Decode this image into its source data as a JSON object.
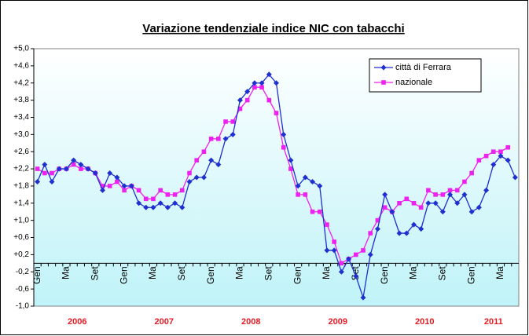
{
  "chart_data": {
    "type": "line",
    "title": "Variazione tendenziale indice NIC con tabacchi",
    "categories": [
      "Gen",
      null,
      null,
      null,
      "Ma",
      null,
      null,
      null,
      "Set",
      null,
      null,
      null,
      "Gen",
      null,
      null,
      null,
      "Ma",
      null,
      null,
      null,
      "Set",
      null,
      null,
      null,
      "Gen",
      null,
      null,
      null,
      "Ma",
      null,
      null,
      null,
      "Set",
      null,
      null,
      null,
      "Gen",
      null,
      null,
      null,
      "Ma",
      null,
      null,
      null,
      "Set",
      null,
      null,
      null,
      "Gen",
      null,
      null,
      null,
      "Ma",
      null,
      null,
      null,
      "Set",
      null,
      null,
      null,
      "Gen",
      null,
      null,
      null,
      "Ma",
      null,
      null
    ],
    "years": [
      "2006",
      "2007",
      "2008",
      "2009",
      "2010",
      "2011"
    ],
    "series": [
      {
        "name": "città di Ferrara",
        "color": "#1f2fd0",
        "marker": "diamond",
        "values": [
          1.9,
          2.3,
          1.9,
          2.2,
          2.2,
          2.4,
          2.3,
          2.2,
          2.1,
          1.7,
          2.1,
          2.0,
          1.8,
          1.8,
          1.4,
          1.3,
          1.3,
          1.4,
          1.3,
          1.4,
          1.3,
          1.9,
          2.0,
          2.0,
          2.4,
          2.3,
          2.9,
          3.0,
          3.8,
          4.0,
          4.2,
          4.2,
          4.4,
          4.2,
          3.0,
          2.4,
          1.8,
          2.0,
          1.9,
          1.8,
          0.3,
          0.3,
          -0.2,
          0.1,
          -0.3,
          -0.8,
          0.2,
          0.8,
          1.6,
          1.2,
          0.7,
          0.7,
          0.9,
          0.8,
          1.4,
          1.4,
          1.2,
          1.6,
          1.4,
          1.6,
          1.2,
          1.3,
          1.7,
          2.3,
          2.5,
          2.4,
          2.0
        ]
      },
      {
        "name": "nazionale",
        "color": "#ee22ee",
        "marker": "square",
        "values": [
          2.2,
          2.1,
          2.1,
          2.2,
          2.2,
          2.3,
          2.2,
          2.2,
          2.1,
          1.8,
          1.8,
          1.9,
          1.7,
          1.8,
          1.7,
          1.5,
          1.5,
          1.7,
          1.6,
          1.6,
          1.7,
          2.1,
          2.4,
          2.6,
          2.9,
          2.9,
          3.3,
          3.3,
          3.6,
          3.8,
          4.1,
          4.1,
          3.8,
          3.5,
          2.7,
          2.2,
          1.6,
          1.6,
          1.2,
          1.2,
          0.9,
          0.5,
          0.0,
          0.1,
          0.2,
          0.3,
          0.7,
          1.0,
          1.3,
          1.2,
          1.4,
          1.5,
          1.4,
          1.3,
          1.7,
          1.6,
          1.6,
          1.7,
          1.7,
          1.9,
          2.1,
          2.4,
          2.5,
          2.6,
          2.6,
          2.7,
          null
        ]
      }
    ],
    "ylim": [
      -1.0,
      5.0
    ],
    "yticks": [
      {
        "value": -1.0,
        "label": "-1,0"
      },
      {
        "value": -0.6,
        "label": "-0,6"
      },
      {
        "value": -0.2,
        "label": "-0,2"
      },
      {
        "value": 0.2,
        "label": "+0,2"
      },
      {
        "value": 0.6,
        "label": "+0,6"
      },
      {
        "value": 1.0,
        "label": "+1,0"
      },
      {
        "value": 1.4,
        "label": "+1,4"
      },
      {
        "value": 1.8,
        "label": "+1,8"
      },
      {
        "value": 2.2,
        "label": "+2,2"
      },
      {
        "value": 2.6,
        "label": "+2,6"
      },
      {
        "value": 3.0,
        "label": "+3,0"
      },
      {
        "value": 3.4,
        "label": "+3,4"
      },
      {
        "value": 3.8,
        "label": "+3,8"
      },
      {
        "value": 4.2,
        "label": "+4,2"
      },
      {
        "value": 4.6,
        "label": "+4,6"
      },
      {
        "value": 5.0,
        "label": "+5,0"
      }
    ],
    "legend": "top-right"
  }
}
